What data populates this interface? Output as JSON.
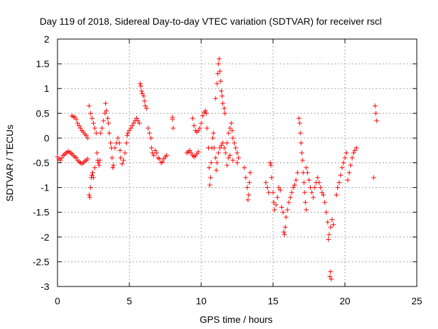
{
  "chart_data": {
    "type": "scatter",
    "title": "Day 119 of 2018, Sidereal Day-to-day VTEC variation (SDTVAR) for receiver rscl",
    "xlabel": "GPS time / hours",
    "ylabel": "SDTVAR / TECUs",
    "xlim": [
      0,
      25
    ],
    "ylim": [
      -3,
      2
    ],
    "xticks": [
      0,
      5,
      10,
      15,
      20,
      25
    ],
    "xtick_labels": [
      "0",
      "5",
      "10",
      "15",
      "20",
      "25"
    ],
    "yticks": [
      2,
      1.5,
      1,
      0.5,
      0,
      -0.5,
      -1,
      -1.5,
      -2,
      -2.5,
      -3
    ],
    "ytick_labels": [
      "2",
      "1.5",
      "1",
      "0.5",
      "0",
      "-0.5",
      "-1",
      "-1.5",
      "-2",
      "-2.5",
      "-3"
    ],
    "grid": true,
    "marker": "+",
    "color": "#ff0000",
    "series": [
      {
        "name": "SDTVAR",
        "points": [
          [
            0.0,
            -0.38
          ],
          [
            0.1,
            -0.42
          ],
          [
            0.2,
            -0.45
          ],
          [
            0.3,
            -0.4
          ],
          [
            0.4,
            -0.35
          ],
          [
            0.5,
            -0.33
          ],
          [
            0.6,
            -0.3
          ],
          [
            0.7,
            -0.28
          ],
          [
            0.8,
            -0.27
          ],
          [
            0.9,
            -0.3
          ],
          [
            1.0,
            -0.32
          ],
          [
            1.1,
            -0.35
          ],
          [
            1.2,
            -0.38
          ],
          [
            1.3,
            -0.4
          ],
          [
            1.4,
            -0.45
          ],
          [
            1.5,
            -0.48
          ],
          [
            1.6,
            -0.5
          ],
          [
            1.7,
            -0.52
          ],
          [
            1.8,
            -0.5
          ],
          [
            1.9,
            -0.47
          ],
          [
            2.0,
            -0.45
          ],
          [
            2.1,
            -0.42
          ],
          [
            1.0,
            0.45
          ],
          [
            1.1,
            0.43
          ],
          [
            1.2,
            0.42
          ],
          [
            1.3,
            0.38
          ],
          [
            1.4,
            0.3
          ],
          [
            1.5,
            0.25
          ],
          [
            1.6,
            0.2
          ],
          [
            1.7,
            0.15
          ],
          [
            1.8,
            0.12
          ],
          [
            1.9,
            0.08
          ],
          [
            2.0,
            0.05
          ],
          [
            2.1,
            0.0
          ],
          [
            2.2,
            -1.15
          ],
          [
            2.25,
            -1.2
          ],
          [
            2.3,
            -1.0
          ],
          [
            2.35,
            -0.8
          ],
          [
            2.4,
            -0.75
          ],
          [
            2.45,
            -0.7
          ],
          [
            2.5,
            -0.8
          ],
          [
            2.2,
            0.65
          ],
          [
            2.3,
            0.5
          ],
          [
            2.4,
            0.4
          ],
          [
            2.5,
            0.3
          ],
          [
            2.6,
            0.2
          ],
          [
            2.7,
            0.1
          ],
          [
            2.75,
            -0.3
          ],
          [
            2.8,
            -0.45
          ],
          [
            2.85,
            -0.5
          ],
          [
            2.9,
            -0.55
          ],
          [
            2.95,
            -0.45
          ],
          [
            2.6,
            -0.6
          ],
          [
            3.0,
            0.1
          ],
          [
            3.1,
            0.2
          ],
          [
            3.2,
            0.35
          ],
          [
            3.3,
            0.5
          ],
          [
            3.35,
            0.7
          ],
          [
            3.4,
            0.55
          ],
          [
            3.5,
            0.4
          ],
          [
            3.55,
            0.3
          ],
          [
            3.6,
            0.1
          ],
          [
            3.7,
            -0.1
          ],
          [
            3.75,
            -0.2
          ],
          [
            3.8,
            -0.4
          ],
          [
            3.85,
            -0.6
          ],
          [
            3.9,
            -0.55
          ],
          [
            4.0,
            -0.2
          ],
          [
            4.1,
            -0.1
          ],
          [
            4.2,
            0.0
          ],
          [
            4.3,
            -0.1
          ],
          [
            4.35,
            -0.25
          ],
          [
            4.4,
            -0.4
          ],
          [
            4.5,
            -0.52
          ],
          [
            4.6,
            -0.45
          ],
          [
            4.7,
            -0.3
          ],
          [
            4.8,
            -0.1
          ],
          [
            4.85,
            0.05
          ],
          [
            4.9,
            0.1
          ],
          [
            5.0,
            0.15
          ],
          [
            5.1,
            0.2
          ],
          [
            5.2,
            0.25
          ],
          [
            5.3,
            0.3
          ],
          [
            5.4,
            0.35
          ],
          [
            5.5,
            0.4
          ],
          [
            5.6,
            0.35
          ],
          [
            5.7,
            0.3
          ],
          [
            5.75,
            1.1
          ],
          [
            5.8,
            1.05
          ],
          [
            5.85,
            0.95
          ],
          [
            5.9,
            0.9
          ],
          [
            6.0,
            0.85
          ],
          [
            6.05,
            0.75
          ],
          [
            6.1,
            0.65
          ],
          [
            6.2,
            0.6
          ],
          [
            6.3,
            0.2
          ],
          [
            6.4,
            0.1
          ],
          [
            6.5,
            0.0
          ],
          [
            6.55,
            -0.2
          ],
          [
            6.6,
            -0.3
          ],
          [
            6.7,
            -0.35
          ],
          [
            6.8,
            -0.25
          ],
          [
            6.9,
            -0.3
          ],
          [
            7.0,
            -0.4
          ],
          [
            7.1,
            -0.42
          ],
          [
            7.2,
            -0.5
          ],
          [
            7.3,
            -0.48
          ],
          [
            7.4,
            -0.42
          ],
          [
            7.5,
            -0.38
          ],
          [
            7.6,
            -0.35
          ],
          [
            8.0,
            0.42
          ],
          [
            8.0,
            0.38
          ],
          [
            8.05,
            0.2
          ],
          [
            9.0,
            -0.3
          ],
          [
            9.1,
            -0.28
          ],
          [
            9.2,
            -0.25
          ],
          [
            9.3,
            -0.3
          ],
          [
            9.4,
            -0.35
          ],
          [
            9.5,
            -0.38
          ],
          [
            9.6,
            -0.36
          ],
          [
            9.7,
            -0.32
          ],
          [
            9.8,
            -0.28
          ],
          [
            9.4,
            0.4
          ],
          [
            9.5,
            0.25
          ],
          [
            9.6,
            0.15
          ],
          [
            9.7,
            0.12
          ],
          [
            9.8,
            0.15
          ],
          [
            9.9,
            0.2
          ],
          [
            10.0,
            0.3
          ],
          [
            10.1,
            0.45
          ],
          [
            10.2,
            0.52
          ],
          [
            10.3,
            0.55
          ],
          [
            10.35,
            0.5
          ],
          [
            10.4,
            0.2
          ],
          [
            10.5,
            -0.2
          ],
          [
            10.55,
            -0.6
          ],
          [
            10.6,
            -0.95
          ],
          [
            10.65,
            -0.8
          ],
          [
            10.7,
            -0.5
          ],
          [
            10.75,
            -0.2
          ],
          [
            10.8,
            0.0
          ],
          [
            10.85,
            0.1
          ],
          [
            11.0,
            0.8
          ],
          [
            11.1,
            1.1
          ],
          [
            11.15,
            1.3
          ],
          [
            11.2,
            1.5
          ],
          [
            11.25,
            1.6
          ],
          [
            11.3,
            1.35
          ],
          [
            11.35,
            1.15
          ],
          [
            11.4,
            0.95
          ],
          [
            11.45,
            0.85
          ],
          [
            11.5,
            0.7
          ],
          [
            11.6,
            0.6
          ],
          [
            11.65,
            0.5
          ],
          [
            10.9,
            -0.2
          ],
          [
            11.0,
            -0.4
          ],
          [
            11.05,
            -0.65
          ],
          [
            11.1,
            -0.5
          ],
          [
            11.2,
            -0.3
          ],
          [
            11.3,
            -0.2
          ],
          [
            11.4,
            -0.15
          ],
          [
            11.5,
            -0.1
          ],
          [
            11.6,
            -0.2
          ],
          [
            11.7,
            -0.3
          ],
          [
            11.8,
            -0.1
          ],
          [
            11.9,
            0.1
          ],
          [
            12.0,
            0.2
          ],
          [
            12.1,
            0.3
          ],
          [
            12.15,
            0.15
          ],
          [
            12.2,
            0.0
          ],
          [
            12.3,
            -0.1
          ],
          [
            12.4,
            -0.2
          ],
          [
            12.5,
            -0.3
          ],
          [
            12.6,
            -0.4
          ],
          [
            11.8,
            -0.55
          ],
          [
            11.9,
            -0.4
          ],
          [
            12.0,
            -0.35
          ],
          [
            12.2,
            -0.45
          ],
          [
            12.5,
            -0.5
          ],
          [
            13.0,
            -0.6
          ],
          [
            13.1,
            -0.8
          ],
          [
            13.2,
            -1.0
          ],
          [
            13.25,
            -1.25
          ],
          [
            13.3,
            -1.15
          ],
          [
            13.35,
            -0.9
          ],
          [
            13.4,
            -0.7
          ],
          [
            14.5,
            -0.9
          ],
          [
            14.6,
            -1.0
          ],
          [
            14.7,
            -1.1
          ],
          [
            14.8,
            -0.5
          ],
          [
            14.85,
            -0.55
          ],
          [
            14.9,
            -0.8
          ],
          [
            15.0,
            -1.1
          ],
          [
            15.05,
            -1.3
          ],
          [
            15.1,
            -1.45
          ],
          [
            15.2,
            -1.35
          ],
          [
            15.3,
            -1.2
          ],
          [
            15.4,
            -1.0
          ],
          [
            15.5,
            -1.05
          ],
          [
            15.6,
            -1.4
          ],
          [
            15.7,
            -1.5
          ],
          [
            15.75,
            -1.9
          ],
          [
            15.8,
            -1.95
          ],
          [
            15.85,
            -1.8
          ],
          [
            15.9,
            -1.6
          ],
          [
            16.0,
            -1.45
          ],
          [
            16.1,
            -1.3
          ],
          [
            16.2,
            -1.2
          ],
          [
            16.3,
            -1.1
          ],
          [
            16.4,
            -1.0
          ],
          [
            16.5,
            -0.95
          ],
          [
            16.6,
            -0.85
          ],
          [
            16.7,
            -0.7
          ],
          [
            16.8,
            0.4
          ],
          [
            16.85,
            0.3
          ],
          [
            16.9,
            0.1
          ],
          [
            16.95,
            -0.1
          ],
          [
            17.0,
            -0.3
          ],
          [
            17.05,
            -0.45
          ],
          [
            17.1,
            -0.7
          ],
          [
            17.15,
            -0.9
          ],
          [
            17.2,
            -1.1
          ],
          [
            17.25,
            -1.3
          ],
          [
            17.3,
            -1.45
          ],
          [
            17.3,
            -0.6
          ],
          [
            17.4,
            -0.7
          ],
          [
            17.5,
            -0.85
          ],
          [
            17.6,
            -1.0
          ],
          [
            17.7,
            -1.1
          ],
          [
            17.8,
            -1.2
          ],
          [
            17.9,
            -1.0
          ],
          [
            18.0,
            -0.9
          ],
          [
            18.1,
            -0.8
          ],
          [
            18.2,
            -0.9
          ],
          [
            18.3,
            -1.0
          ],
          [
            18.4,
            -1.1
          ],
          [
            18.5,
            -1.15
          ],
          [
            18.6,
            -1.3
          ],
          [
            18.7,
            -1.5
          ],
          [
            18.8,
            -1.7
          ],
          [
            18.85,
            -2.05
          ],
          [
            18.9,
            -1.95
          ],
          [
            18.95,
            -2.8
          ],
          [
            19.0,
            -2.7
          ],
          [
            19.05,
            -2.85
          ],
          [
            19.0,
            -1.8
          ],
          [
            19.1,
            -1.65
          ],
          [
            19.2,
            -1.75
          ],
          [
            19.4,
            -1.15
          ],
          [
            19.5,
            -1.0
          ],
          [
            19.6,
            -0.9
          ],
          [
            19.7,
            -0.75
          ],
          [
            19.8,
            -0.6
          ],
          [
            19.9,
            -0.5
          ],
          [
            20.0,
            -0.4
          ],
          [
            20.1,
            -0.3
          ],
          [
            20.2,
            -0.85
          ],
          [
            20.3,
            -0.7
          ],
          [
            20.4,
            -0.55
          ],
          [
            20.5,
            -0.4
          ],
          [
            20.6,
            -0.3
          ],
          [
            20.7,
            -0.25
          ],
          [
            20.8,
            -0.2
          ],
          [
            22.0,
            -0.8
          ],
          [
            22.1,
            0.65
          ],
          [
            22.15,
            0.5
          ],
          [
            22.2,
            0.35
          ]
        ]
      }
    ]
  }
}
